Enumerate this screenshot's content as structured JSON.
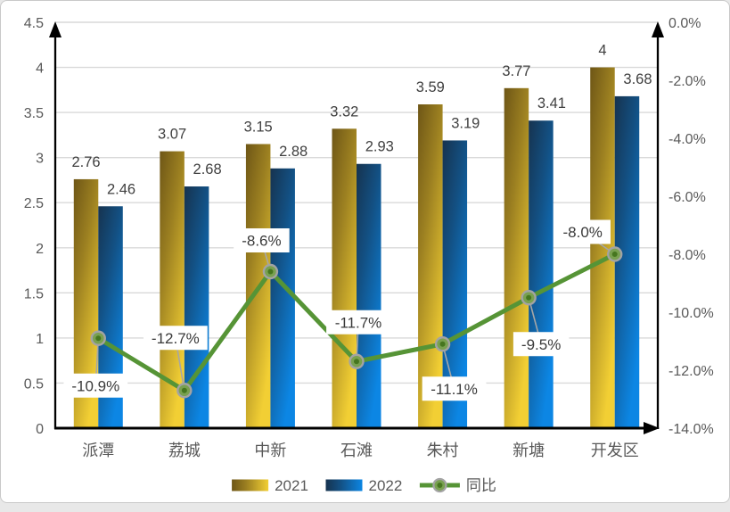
{
  "chart_data": {
    "type": "combo-bar-line",
    "title": "",
    "categories": [
      "派潭",
      "荔城",
      "中新",
      "石滩",
      "朱村",
      "新塘",
      "开发区"
    ],
    "series": [
      {
        "name": "2021",
        "type": "bar",
        "axis": "left",
        "values": [
          2.76,
          3.07,
          3.15,
          3.32,
          3.59,
          3.77,
          4
        ],
        "labels": [
          "2.76",
          "3.07",
          "3.15",
          "3.32",
          "3.59",
          "3.77",
          "4"
        ],
        "color_dark": "#6E5616",
        "color_light": "#F2CF34"
      },
      {
        "name": "2022",
        "type": "bar",
        "axis": "left",
        "values": [
          2.46,
          2.68,
          2.88,
          2.93,
          3.19,
          3.41,
          3.68
        ],
        "labels": [
          "2.46",
          "2.68",
          "2.88",
          "2.93",
          "3.19",
          "3.41",
          "3.68"
        ],
        "color_dark": "#16334F",
        "color_light": "#0C86E4"
      },
      {
        "name": "同比",
        "type": "line",
        "axis": "right",
        "values": [
          -10.9,
          -12.7,
          -8.6,
          -11.7,
          -11.1,
          -9.5,
          -8.0
        ],
        "labels": [
          "-10.9%",
          "-12.7%",
          "-8.6%",
          "-11.7%",
          "-11.1%",
          "-9.5%",
          "-8.0%"
        ],
        "color": "#569436",
        "marker": {
          "ring": "#A3A3A3",
          "fill": "#79A150",
          "dot": "#46761F"
        },
        "label_offsets": [
          {
            "dx": -3,
            "dy": 53
          },
          {
            "dx": -10,
            "dy": -59
          },
          {
            "dx": -10,
            "dy": -35
          },
          {
            "dx": 2,
            "dy": -44
          },
          {
            "dx": 13,
            "dy": 50
          },
          {
            "dx": 14,
            "dy": 52
          },
          {
            "dx": -36,
            "dy": -25
          }
        ]
      }
    ],
    "axes": {
      "left": {
        "min": 0,
        "max": 4.5,
        "step": 0.5,
        "tick_labels": [
          "0",
          "0.5",
          "1",
          "1.5",
          "2",
          "2.5",
          "3",
          "3.5",
          "4",
          "4.5"
        ]
      },
      "right": {
        "min": -14,
        "max": 0,
        "step": 2,
        "tick_labels": [
          "0.0%",
          "-2.0%",
          "-4.0%",
          "-6.0%",
          "-8.0%",
          "-10.0%",
          "-12.0%",
          "-14.0%"
        ]
      }
    },
    "grid": true,
    "legend_position": "bottom",
    "colors": {
      "gridline": "#D9D9D9",
      "axis_line": "#000000",
      "tick_text": "#595959",
      "category_text": "#595959",
      "bar_label_text": "#404040",
      "line_label_text": "#3A3A3A",
      "leader_line": "#A6A6A6",
      "label_box_fill": "#FFFFFF",
      "legend_text": "#595959",
      "frame_background": "#FFFFFF",
      "page_background": "#E8E8E8"
    }
  }
}
